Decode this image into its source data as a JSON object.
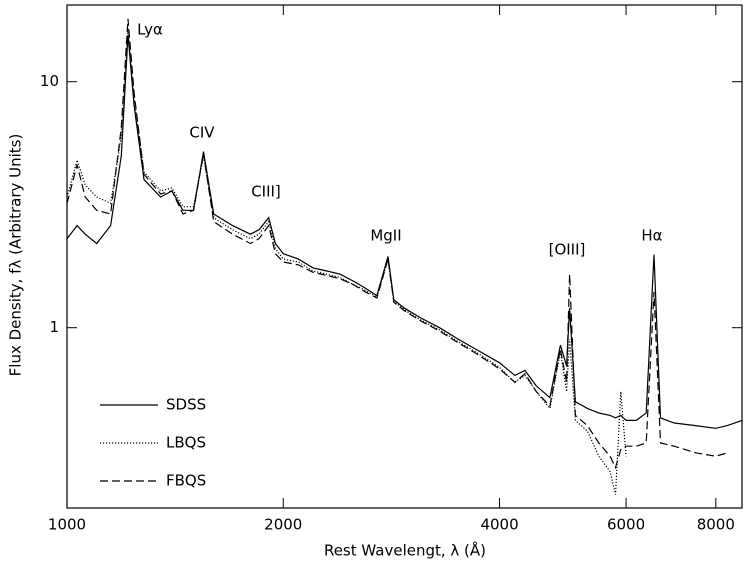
{
  "chart_data": {
    "type": "line",
    "x_label": "Rest Wavelengt, λ (Å)",
    "y_label": "Flux Density, fλ (Arbitrary Units)",
    "xscale": "log",
    "yscale": "log",
    "xlim": [
      1000,
      8700
    ],
    "ylim": [
      0.185,
      20.5
    ],
    "xticks": [
      1000,
      2000,
      4000,
      6000,
      8000
    ],
    "yticks": [
      1,
      10
    ],
    "legend": "lower left",
    "annotations": [
      "Lyα",
      "CIV",
      "CIII]",
      "MgII",
      "[OIII]",
      "Hα"
    ],
    "x": [
      1000,
      1033,
      1060,
      1100,
      1150,
      1190,
      1216,
      1240,
      1280,
      1350,
      1400,
      1450,
      1500,
      1549,
      1600,
      1700,
      1800,
      1850,
      1909,
      1950,
      2000,
      2100,
      2200,
      2300,
      2400,
      2500,
      2600,
      2700,
      2798,
      2850,
      2950,
      3100,
      3300,
      3500,
      3700,
      4000,
      4200,
      4340,
      4500,
      4700,
      4861,
      4959,
      5007,
      5100,
      5300,
      5500,
      5700,
      5800,
      5900,
      6000,
      6200,
      6400,
      6563,
      6700,
      7000,
      7500,
      8000,
      8300,
      8700
    ],
    "series": [
      {
        "name": "SDSS",
        "color": "#000000",
        "line_style": "solid",
        "values": [
          2.3,
          2.6,
          2.4,
          2.2,
          2.6,
          5,
          15.5,
          8,
          4,
          3.4,
          3.6,
          3.0,
          3.0,
          5.2,
          2.9,
          2.6,
          2.4,
          2.5,
          2.8,
          2.2,
          2.0,
          1.9,
          1.75,
          1.7,
          1.65,
          1.55,
          1.45,
          1.35,
          1.95,
          1.3,
          1.2,
          1.1,
          1.0,
          0.9,
          0.82,
          0.72,
          0.64,
          0.67,
          0.58,
          0.52,
          0.85,
          0.7,
          1.2,
          0.5,
          0.47,
          0.45,
          0.44,
          0.43,
          0.44,
          0.42,
          0.42,
          0.45,
          1.98,
          0.43,
          0.41,
          0.4,
          0.39,
          0.4,
          0.42
        ]
      },
      {
        "name": "LBQS",
        "color": "#000000",
        "line_style": "dotted",
        "values": [
          3.4,
          4.8,
          3.8,
          3.4,
          3.2,
          6,
          16.5,
          8.5,
          4.3,
          3.6,
          3.7,
          3.1,
          3.1,
          5.0,
          2.8,
          2.5,
          2.3,
          2.4,
          2.7,
          2.1,
          1.9,
          1.85,
          1.7,
          1.65,
          1.6,
          1.5,
          1.42,
          1.33,
          1.9,
          1.28,
          1.18,
          1.08,
          0.98,
          0.88,
          0.8,
          0.69,
          0.6,
          0.64,
          0.55,
          0.47,
          0.8,
          0.55,
          0.9,
          0.42,
          0.38,
          0.3,
          0.26,
          0.21,
          0.55,
          0.3,
          null,
          null,
          null,
          null,
          null,
          null,
          null,
          null,
          null
        ]
      },
      {
        "name": "FBQS",
        "color": "#000000",
        "line_style": "dashed",
        "values": [
          3.2,
          4.6,
          3.4,
          3.0,
          2.9,
          6.5,
          18,
          9,
          4.2,
          3.5,
          3.6,
          2.9,
          3.0,
          5.1,
          2.7,
          2.4,
          2.2,
          2.3,
          2.6,
          2.0,
          1.85,
          1.8,
          1.68,
          1.63,
          1.58,
          1.5,
          1.4,
          1.32,
          1.9,
          1.27,
          1.17,
          1.07,
          0.97,
          0.87,
          0.79,
          0.68,
          0.6,
          0.65,
          0.55,
          0.48,
          0.82,
          0.6,
          1.65,
          0.44,
          0.4,
          0.34,
          0.3,
          0.27,
          0.32,
          0.33,
          0.33,
          0.34,
          1.4,
          0.34,
          0.33,
          0.31,
          0.3,
          0.31,
          null
        ]
      }
    ]
  }
}
